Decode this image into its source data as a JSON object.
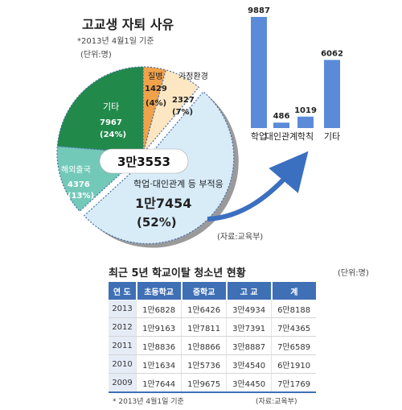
{
  "pie_chart": {
    "title": "고교생 자퇴 사유",
    "note": "*2013년 4월1일 기준",
    "unit": "(단위:명)",
    "total_label": "3만3553",
    "source": "(자료:교육부)",
    "slices": [
      {
        "name": "질병",
        "value_label": "1429",
        "pct_label": "(4%)",
        "value": 1429,
        "color": "#f0a24a"
      },
      {
        "name": "가정환경",
        "value_label": "2327",
        "pct_label": "(7%)",
        "value": 2327,
        "color": "#fce7c2"
      },
      {
        "name": "학업·대인관계 등 부적응",
        "value_label": "1만7454",
        "pct_label": "(52%)",
        "value": 17454,
        "color": "#d8ecf8"
      },
      {
        "name": "해외출국",
        "value_label": "4376",
        "pct_label": "(13%)",
        "value": 4376,
        "color": "#73c9b8"
      },
      {
        "name": "기타",
        "value_label": "7967",
        "pct_label": "(24%)",
        "value": 7967,
        "color": "#218a4a"
      }
    ]
  },
  "chart_data": [
    {
      "type": "pie",
      "title": "고교생 자퇴 사유",
      "unit": "(단위:명)",
      "categories": [
        "질병",
        "가정환경",
        "학업·대인관계 등 부적응",
        "해외출국",
        "기타"
      ],
      "values": [
        1429,
        2327,
        17454,
        4376,
        7967
      ],
      "percent": [
        4,
        7,
        52,
        13,
        24
      ],
      "total": 33553
    },
    {
      "type": "bar",
      "categories": [
        "학업",
        "대인관계",
        "학칙",
        "기타"
      ],
      "values": [
        9887,
        486,
        1019,
        6062
      ],
      "ylim": [
        0,
        9887
      ]
    }
  ],
  "bar_chart": {
    "bar_color": "#5b8bd8",
    "bars": [
      {
        "label": "학업",
        "value": 9887
      },
      {
        "label": "대인관계",
        "value": 486
      },
      {
        "label": "학칙",
        "value": 1019
      },
      {
        "label": "기타",
        "value": 6062
      }
    ]
  },
  "table": {
    "title": "최근 5년 학교이탈 청소년 현황",
    "unit": "(단위:명)",
    "headers": [
      "연 도",
      "초등학교",
      "중학교",
      "고 교",
      "계"
    ],
    "rows": [
      [
        "2013",
        "1만6828",
        "1만6426",
        "3만4934",
        "6만8188"
      ],
      [
        "2012",
        "1만9163",
        "1만7811",
        "3만7391",
        "7만4365"
      ],
      [
        "2011",
        "1만8836",
        "1만8866",
        "3만8887",
        "7만6589"
      ],
      [
        "2010",
        "1만1634",
        "1만5736",
        "3만4540",
        "6만1910"
      ],
      [
        "2009",
        "1만7644",
        "1만9675",
        "3만4450",
        "7만1769"
      ]
    ],
    "note": "* 2013년 4월1일 기준",
    "source": "(자료:교육부)"
  }
}
